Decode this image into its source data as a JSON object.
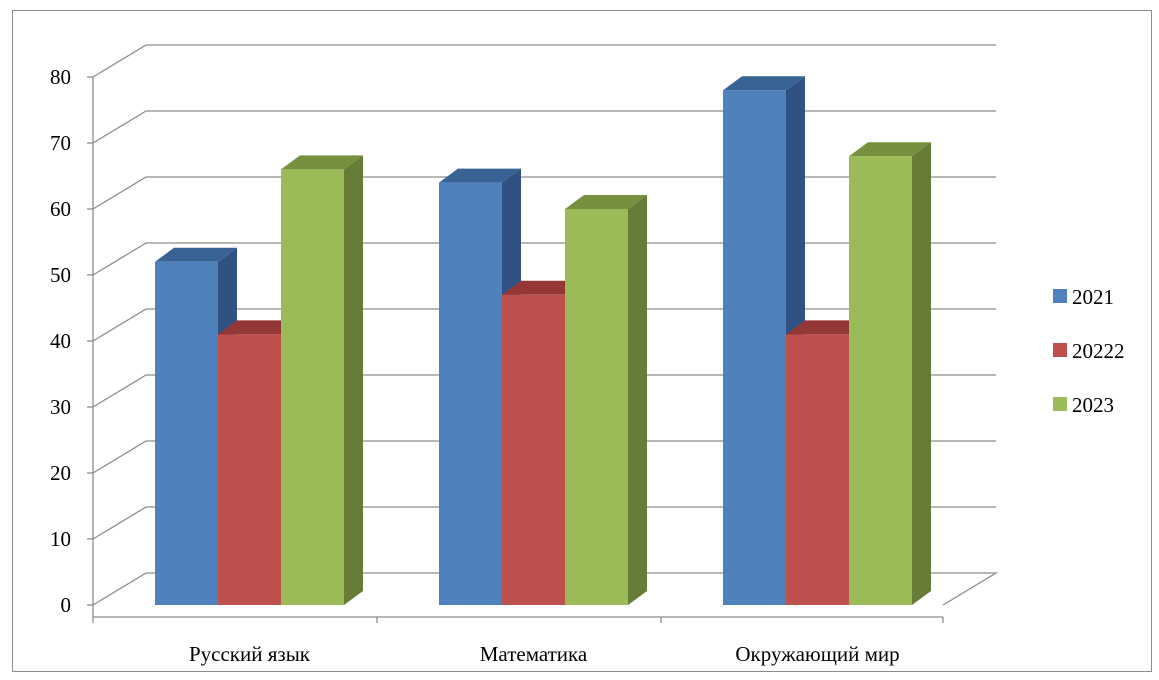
{
  "chart_data": {
    "type": "bar",
    "title": "",
    "xlabel": "",
    "ylabel": "",
    "categories": [
      "Русский язык",
      "Математика",
      "Окружающий мир"
    ],
    "series": [
      {
        "name": "2021",
        "values": [
          52,
          64,
          78
        ]
      },
      {
        "name": "20222",
        "values": [
          41,
          47,
          41
        ]
      },
      {
        "name": "2023",
        "values": [
          66,
          60,
          68
        ]
      }
    ],
    "yticks": [
      "0",
      "10",
      "20",
      "30",
      "40",
      "50",
      "60",
      "70",
      "80"
    ],
    "ylim": [
      0,
      80
    ],
    "grid": true,
    "legend_position": "right",
    "colors": {
      "series": [
        {
          "front": "#4f81bd",
          "side": "#2f5282",
          "top": "#3a6395"
        },
        {
          "front": "#c0504d",
          "side": "#7e2d2b",
          "top": "#933836"
        },
        {
          "front": "#9bbb59",
          "side": "#667c37",
          "top": "#76903f"
        }
      ],
      "grid": "#8c8c8c",
      "axis": "#8c8c8c"
    }
  }
}
